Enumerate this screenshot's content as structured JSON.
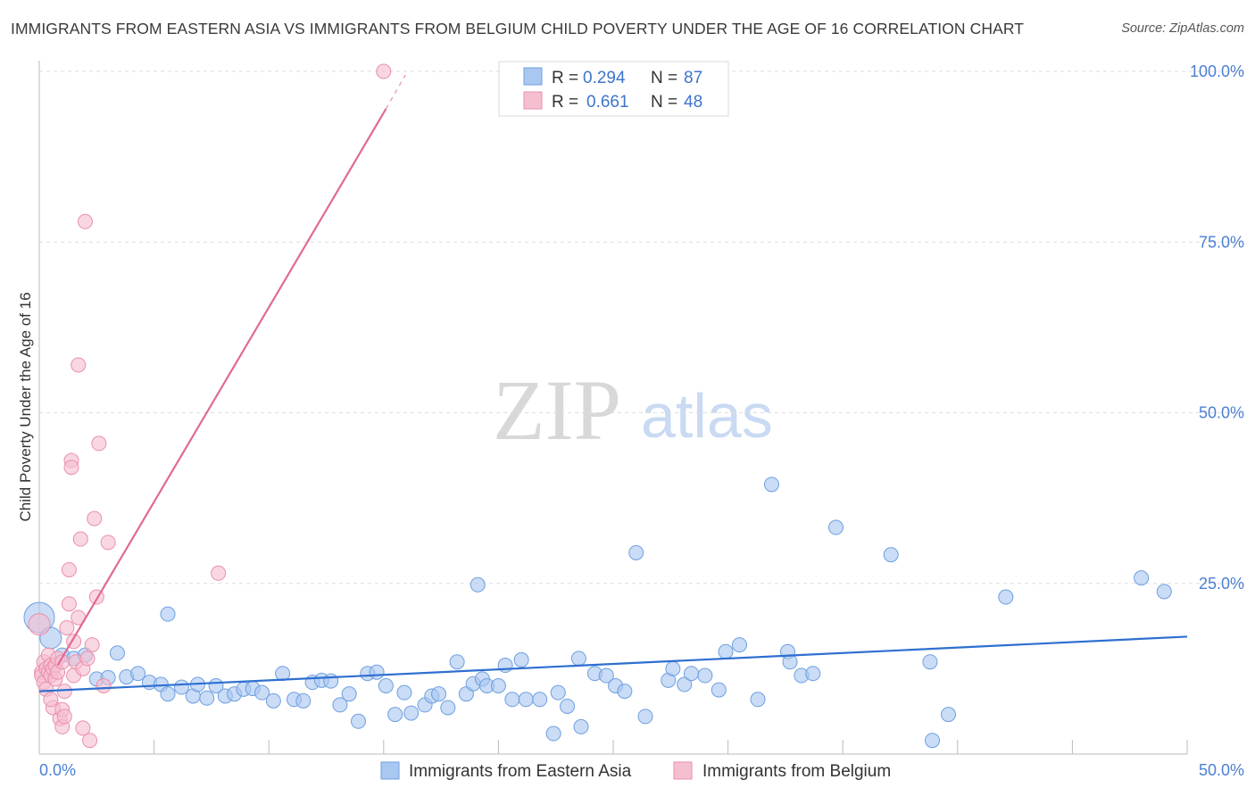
{
  "title": "IMMIGRANTS FROM EASTERN ASIA VS IMMIGRANTS FROM BELGIUM CHILD POVERTY UNDER THE AGE OF 16 CORRELATION CHART",
  "source": "Source: ZipAtlas.com",
  "watermark": {
    "zip": "ZIP",
    "atlas": "atlas"
  },
  "colors": {
    "blue_fill": "#a9c7f0",
    "blue_stroke": "#6e9fe0",
    "blue_line": "#2e6fd0",
    "pink_fill": "#f6bfd0",
    "pink_stroke": "#ea8fac",
    "pink_line": "#e06a94",
    "grid": "#dddddd",
    "tick_text": "#4a7fd4"
  },
  "legend": {
    "rows": [
      {
        "r_label": "R =",
        "r_value": "0.294",
        "n_label": "N =",
        "n_value": "87"
      },
      {
        "r_label": "R =",
        "r_value": "0.661",
        "n_label": "N =",
        "n_value": "48"
      }
    ]
  },
  "bottom_legend": {
    "items": [
      {
        "label": "Immigrants from Eastern Asia"
      },
      {
        "label": "Immigrants from Belgium"
      }
    ]
  },
  "chart_data": {
    "type": "scatter",
    "title": "IMMIGRANTS FROM EASTERN ASIA VS IMMIGRANTS FROM BELGIUM CHILD POVERTY UNDER THE AGE OF 16 CORRELATION CHART",
    "xlabel": "",
    "ylabel": "Child Poverty Under the Age of 16",
    "xlim": [
      0,
      50
    ],
    "ylim": [
      0,
      100
    ],
    "x_tick_labels": [
      "0.0%",
      "50.0%"
    ],
    "y_ticks": [
      25,
      50,
      75,
      100
    ],
    "y_tick_labels": [
      "25.0%",
      "50.0%",
      "75.0%",
      "100.0%"
    ],
    "grid": true,
    "legend_position": "top-center",
    "series": [
      {
        "name": "Immigrants from Eastern Asia",
        "color": "#a9c7f0",
        "trend": {
          "x": [
            0,
            50
          ],
          "y": [
            9.2,
            17.2
          ]
        },
        "points": [
          {
            "x": 0.0,
            "y": 20.0,
            "s": 3
          },
          {
            "x": 0.5,
            "y": 17.0,
            "s": 2
          },
          {
            "x": 1.0,
            "y": 14.5,
            "s": 1
          },
          {
            "x": 1.5,
            "y": 14.0,
            "s": 1
          },
          {
            "x": 2.0,
            "y": 14.5,
            "s": 1
          },
          {
            "x": 2.5,
            "y": 11.0,
            "s": 1
          },
          {
            "x": 3.0,
            "y": 11.2,
            "s": 1
          },
          {
            "x": 3.4,
            "y": 14.8,
            "s": 1
          },
          {
            "x": 3.8,
            "y": 11.3,
            "s": 1
          },
          {
            "x": 4.3,
            "y": 11.8,
            "s": 1
          },
          {
            "x": 4.8,
            "y": 10.5,
            "s": 1
          },
          {
            "x": 5.3,
            "y": 10.2,
            "s": 1
          },
          {
            "x": 5.6,
            "y": 8.8,
            "s": 1
          },
          {
            "x": 5.6,
            "y": 20.5,
            "s": 1
          },
          {
            "x": 6.2,
            "y": 9.8,
            "s": 1
          },
          {
            "x": 6.7,
            "y": 8.5,
            "s": 1
          },
          {
            "x": 6.9,
            "y": 10.2,
            "s": 1
          },
          {
            "x": 7.3,
            "y": 8.2,
            "s": 1
          },
          {
            "x": 7.7,
            "y": 10.0,
            "s": 1
          },
          {
            "x": 8.1,
            "y": 8.5,
            "s": 1
          },
          {
            "x": 8.5,
            "y": 8.8,
            "s": 1
          },
          {
            "x": 8.9,
            "y": 9.5,
            "s": 1
          },
          {
            "x": 9.3,
            "y": 9.6,
            "s": 1
          },
          {
            "x": 9.7,
            "y": 9.0,
            "s": 1
          },
          {
            "x": 10.2,
            "y": 7.8,
            "s": 1
          },
          {
            "x": 10.6,
            "y": 11.8,
            "s": 1
          },
          {
            "x": 11.1,
            "y": 8.0,
            "s": 1
          },
          {
            "x": 11.5,
            "y": 7.8,
            "s": 1
          },
          {
            "x": 11.9,
            "y": 10.5,
            "s": 1
          },
          {
            "x": 12.3,
            "y": 10.8,
            "s": 1
          },
          {
            "x": 12.7,
            "y": 10.7,
            "s": 1
          },
          {
            "x": 13.1,
            "y": 7.2,
            "s": 1
          },
          {
            "x": 13.5,
            "y": 8.8,
            "s": 1
          },
          {
            "x": 13.9,
            "y": 4.8,
            "s": 1
          },
          {
            "x": 14.3,
            "y": 11.8,
            "s": 1
          },
          {
            "x": 14.7,
            "y": 12.0,
            "s": 1
          },
          {
            "x": 15.1,
            "y": 10.0,
            "s": 1
          },
          {
            "x": 15.5,
            "y": 5.8,
            "s": 1
          },
          {
            "x": 15.9,
            "y": 9.0,
            "s": 1
          },
          {
            "x": 16.2,
            "y": 6.0,
            "s": 1
          },
          {
            "x": 16.8,
            "y": 7.2,
            "s": 1
          },
          {
            "x": 17.1,
            "y": 8.5,
            "s": 1
          },
          {
            "x": 17.4,
            "y": 8.8,
            "s": 1
          },
          {
            "x": 17.8,
            "y": 6.8,
            "s": 1
          },
          {
            "x": 18.2,
            "y": 13.5,
            "s": 1
          },
          {
            "x": 18.6,
            "y": 8.8,
            "s": 1
          },
          {
            "x": 18.9,
            "y": 10.3,
            "s": 1
          },
          {
            "x": 19.3,
            "y": 11.0,
            "s": 1
          },
          {
            "x": 19.1,
            "y": 24.8,
            "s": 1
          },
          {
            "x": 19.5,
            "y": 10.0,
            "s": 1
          },
          {
            "x": 20.6,
            "y": 8.0,
            "s": 1
          },
          {
            "x": 20.3,
            "y": 13.0,
            "s": 1
          },
          {
            "x": 20.0,
            "y": 10.0,
            "s": 1
          },
          {
            "x": 21.0,
            "y": 13.8,
            "s": 1
          },
          {
            "x": 21.2,
            "y": 8.0,
            "s": 1
          },
          {
            "x": 21.8,
            "y": 8.0,
            "s": 1
          },
          {
            "x": 22.4,
            "y": 3.0,
            "s": 1
          },
          {
            "x": 22.6,
            "y": 9.0,
            "s": 1
          },
          {
            "x": 23.0,
            "y": 7.0,
            "s": 1
          },
          {
            "x": 23.5,
            "y": 14.0,
            "s": 1
          },
          {
            "x": 23.6,
            "y": 4.0,
            "s": 1
          },
          {
            "x": 24.2,
            "y": 11.8,
            "s": 1
          },
          {
            "x": 24.7,
            "y": 11.5,
            "s": 1
          },
          {
            "x": 25.1,
            "y": 10.0,
            "s": 1
          },
          {
            "x": 25.5,
            "y": 9.2,
            "s": 1
          },
          {
            "x": 26.0,
            "y": 29.5,
            "s": 1
          },
          {
            "x": 26.4,
            "y": 5.5,
            "s": 1
          },
          {
            "x": 27.4,
            "y": 10.8,
            "s": 1
          },
          {
            "x": 27.6,
            "y": 12.5,
            "s": 1
          },
          {
            "x": 28.1,
            "y": 10.2,
            "s": 1
          },
          {
            "x": 28.4,
            "y": 11.8,
            "s": 1
          },
          {
            "x": 29.0,
            "y": 11.5,
            "s": 1
          },
          {
            "x": 29.6,
            "y": 9.4,
            "s": 1
          },
          {
            "x": 29.9,
            "y": 15.0,
            "s": 1
          },
          {
            "x": 30.5,
            "y": 16.0,
            "s": 1
          },
          {
            "x": 31.3,
            "y": 8.0,
            "s": 1
          },
          {
            "x": 31.9,
            "y": 39.5,
            "s": 1
          },
          {
            "x": 32.6,
            "y": 15.0,
            "s": 1
          },
          {
            "x": 32.7,
            "y": 13.5,
            "s": 1
          },
          {
            "x": 33.2,
            "y": 11.5,
            "s": 1
          },
          {
            "x": 33.7,
            "y": 11.8,
            "s": 1
          },
          {
            "x": 34.7,
            "y": 33.2,
            "s": 1
          },
          {
            "x": 37.1,
            "y": 29.2,
            "s": 1
          },
          {
            "x": 38.8,
            "y": 13.5,
            "s": 1
          },
          {
            "x": 38.9,
            "y": 2.0,
            "s": 1
          },
          {
            "x": 39.6,
            "y": 5.8,
            "s": 1
          },
          {
            "x": 42.1,
            "y": 23.0,
            "s": 1
          },
          {
            "x": 48.0,
            "y": 25.8,
            "s": 1
          },
          {
            "x": 49.0,
            "y": 23.8,
            "s": 1
          }
        ]
      },
      {
        "name": "Immigrants from Belgium",
        "color": "#f6bfd0",
        "trend": {
          "x": [
            0.8,
            15.1
          ],
          "y": [
            13.0,
            94.5
          ]
        },
        "trend_dashed": {
          "x": [
            15.1,
            15.95
          ],
          "y": [
            94.5,
            99.5
          ]
        },
        "points": [
          {
            "x": 0.0,
            "y": 19.0,
            "s": 2
          },
          {
            "x": 0.1,
            "y": 12.0,
            "s": 1
          },
          {
            "x": 0.1,
            "y": 11.5,
            "s": 1
          },
          {
            "x": 0.2,
            "y": 13.5,
            "s": 1
          },
          {
            "x": 0.2,
            "y": 10.5,
            "s": 1
          },
          {
            "x": 0.3,
            "y": 12.5,
            "s": 1
          },
          {
            "x": 0.3,
            "y": 9.5,
            "s": 1
          },
          {
            "x": 0.4,
            "y": 12.0,
            "s": 1
          },
          {
            "x": 0.4,
            "y": 14.5,
            "s": 1
          },
          {
            "x": 0.5,
            "y": 13.0,
            "s": 1
          },
          {
            "x": 0.5,
            "y": 11.5,
            "s": 1
          },
          {
            "x": 0.6,
            "y": 12.5,
            "s": 1
          },
          {
            "x": 0.6,
            "y": 6.8,
            "s": 1
          },
          {
            "x": 0.7,
            "y": 13.0,
            "s": 1
          },
          {
            "x": 0.7,
            "y": 11.0,
            "s": 1
          },
          {
            "x": 0.8,
            "y": 14.0,
            "s": 1
          },
          {
            "x": 0.8,
            "y": 12.0,
            "s": 1
          },
          {
            "x": 0.9,
            "y": 5.2,
            "s": 1
          },
          {
            "x": 1.0,
            "y": 13.5,
            "s": 1
          },
          {
            "x": 1.0,
            "y": 6.5,
            "s": 1
          },
          {
            "x": 1.0,
            "y": 4.0,
            "s": 1
          },
          {
            "x": 1.1,
            "y": 5.5,
            "s": 1
          },
          {
            "x": 1.1,
            "y": 9.2,
            "s": 1
          },
          {
            "x": 1.2,
            "y": 18.5,
            "s": 1
          },
          {
            "x": 1.3,
            "y": 27.0,
            "s": 1
          },
          {
            "x": 1.3,
            "y": 22.0,
            "s": 1
          },
          {
            "x": 1.4,
            "y": 43.0,
            "s": 1
          },
          {
            "x": 1.4,
            "y": 42.0,
            "s": 1
          },
          {
            "x": 1.5,
            "y": 16.5,
            "s": 1
          },
          {
            "x": 1.5,
            "y": 11.5,
            "s": 1
          },
          {
            "x": 1.6,
            "y": 13.5,
            "s": 1
          },
          {
            "x": 1.7,
            "y": 57.0,
            "s": 1
          },
          {
            "x": 1.7,
            "y": 20.0,
            "s": 1
          },
          {
            "x": 1.8,
            "y": 31.5,
            "s": 1
          },
          {
            "x": 1.9,
            "y": 12.5,
            "s": 1
          },
          {
            "x": 1.9,
            "y": 3.8,
            "s": 1
          },
          {
            "x": 2.0,
            "y": 78.0,
            "s": 1
          },
          {
            "x": 2.1,
            "y": 14.0,
            "s": 1
          },
          {
            "x": 2.2,
            "y": 2.0,
            "s": 1
          },
          {
            "x": 2.3,
            "y": 16.0,
            "s": 1
          },
          {
            "x": 2.4,
            "y": 34.5,
            "s": 1
          },
          {
            "x": 2.5,
            "y": 23.0,
            "s": 1
          },
          {
            "x": 2.6,
            "y": 45.5,
            "s": 1
          },
          {
            "x": 2.8,
            "y": 10.0,
            "s": 1
          },
          {
            "x": 3.0,
            "y": 31.0,
            "s": 1
          },
          {
            "x": 7.8,
            "y": 26.5,
            "s": 1
          },
          {
            "x": 15.0,
            "y": 100.0,
            "s": 1
          },
          {
            "x": 0.5,
            "y": 8.0,
            "s": 1
          }
        ]
      }
    ]
  }
}
